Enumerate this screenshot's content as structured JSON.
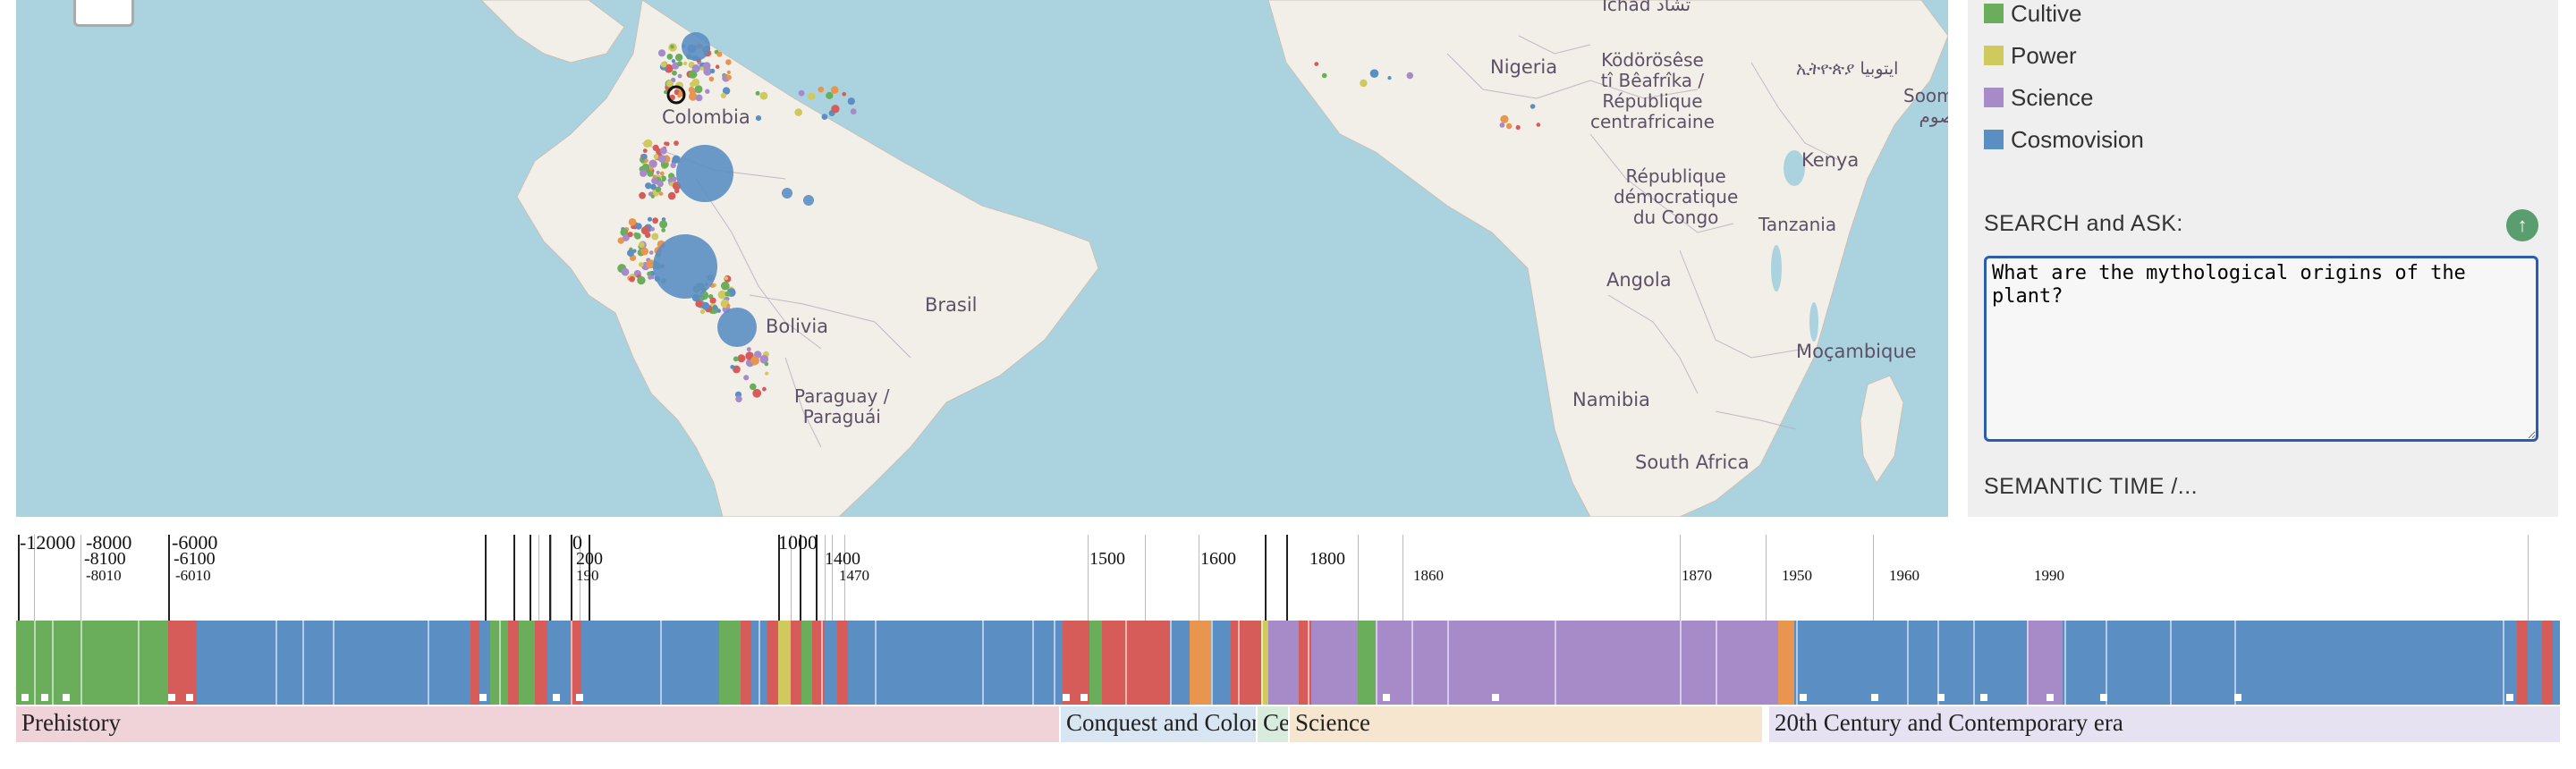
{
  "map": {
    "places": [
      {
        "id": "tchad",
        "text": "Tchad تشاد",
        "class": "country"
      },
      {
        "id": "nigeria",
        "text": "Nigeria",
        "class": "country"
      },
      {
        "id": "car",
        "text": "Ködörösêse\ntî Bêafrîka /\nRépublique\ncentrafricaine",
        "class": "country"
      },
      {
        "id": "ethiopia",
        "text": "ኢትዮጵያ ايتوبيا",
        "class": "country"
      },
      {
        "id": "somalia",
        "text": "Soomaal\nالصوم",
        "class": "country"
      },
      {
        "id": "colombia",
        "text": "Colombia",
        "class": "country"
      },
      {
        "id": "kenya",
        "text": "Kenya",
        "class": "country"
      },
      {
        "id": "drc",
        "text": "République\ndémocratique\ndu Congo",
        "class": "country"
      },
      {
        "id": "tanzania",
        "text": "Tanzania",
        "class": "country"
      },
      {
        "id": "brasil",
        "text": "Brasil",
        "class": "country"
      },
      {
        "id": "bolivia",
        "text": "Bolivia",
        "class": "country"
      },
      {
        "id": "angola",
        "text": "Angola",
        "class": "country"
      },
      {
        "id": "mocambique",
        "text": "Moçambique",
        "class": "country"
      },
      {
        "id": "paraguay",
        "text": "Paraguay /\nParaguái",
        "class": "country"
      },
      {
        "id": "namibia",
        "text": "Namibia",
        "class": "country"
      },
      {
        "id": "south-africa",
        "text": "South Africa",
        "class": "country"
      }
    ]
  },
  "legend": [
    {
      "label": "Cultive",
      "color": "#6aae5c"
    },
    {
      "label": "Power",
      "color": "#cfc95e"
    },
    {
      "label": "Science",
      "color": "#a78bc9"
    },
    {
      "label": "Cosmovision",
      "color": "#5b8ec3"
    }
  ],
  "search": {
    "title": "SEARCH and ASK:",
    "value": "What are the mythological origins of the plant?",
    "up_icon": "arrow-up-icon"
  },
  "semantic": {
    "title": "SEMANTIC TIME  /..."
  },
  "colors": {
    "cultive": "#6aae5c",
    "power": "#cfc95e",
    "science": "#a78bc9",
    "cosmovision": "#5b8ec3",
    "conflict": "#d65c5a",
    "orange": "#e8964f"
  },
  "timeline": {
    "tick_labels": [
      {
        "text": "-12000"
      },
      {
        "text": "-8000"
      },
      {
        "text": "-6000"
      },
      {
        "text": "-8100"
      },
      {
        "text": "-6100"
      },
      {
        "text": "-8010"
      },
      {
        "text": "-6010"
      },
      {
        "text": "0"
      },
      {
        "text": "200"
      },
      {
        "text": "190"
      },
      {
        "text": "1000"
      },
      {
        "text": "1400"
      },
      {
        "text": "1470"
      },
      {
        "text": "1500"
      },
      {
        "text": "1600"
      },
      {
        "text": "1800"
      },
      {
        "text": "1860"
      },
      {
        "text": "1870"
      },
      {
        "text": "1950"
      },
      {
        "text": "1960"
      },
      {
        "text": "1990"
      }
    ],
    "eras": [
      {
        "label": "Prehistory",
        "color": "#efd3d9"
      },
      {
        "label": "Conquest and Colonization",
        "color": "#d8e5f2"
      },
      {
        "label": "Ce",
        "color": "#d8ecdd"
      },
      {
        "label": "Science",
        "color": "#f6e6d0"
      },
      {
        "label": "20th Century and Contemporary era",
        "color": "#e6e2f1"
      }
    ]
  }
}
